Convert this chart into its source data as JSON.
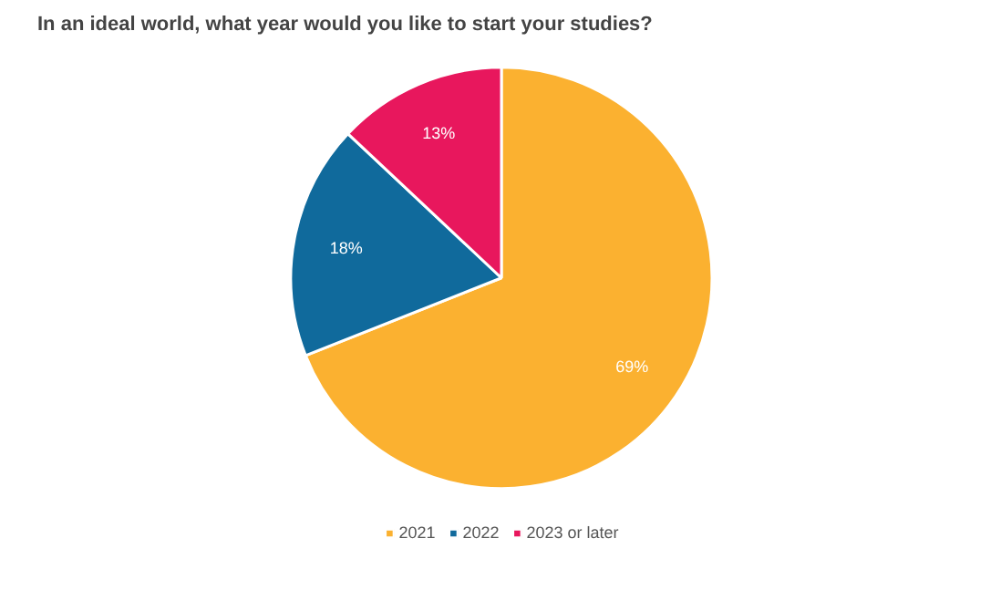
{
  "chart_data": {
    "type": "pie",
    "title": "In an ideal world, what year would you like to start your studies?",
    "categories": [
      "2021",
      "2022",
      "2023 or later"
    ],
    "values": [
      69,
      18,
      13
    ],
    "value_labels": [
      "69%",
      "18%",
      "13%"
    ],
    "colors": [
      "#fbb130",
      "#106a9c",
      "#e8175d"
    ],
    "legend": "bottom"
  }
}
